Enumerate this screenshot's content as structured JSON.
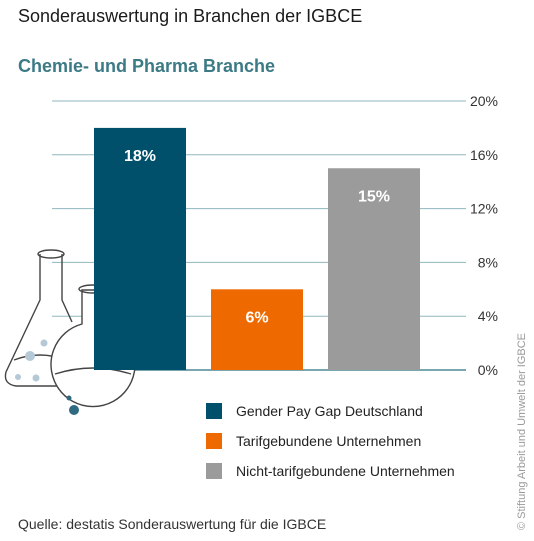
{
  "title": "Sonderauswertung in Branchen der IGBCE",
  "subtitle": "Chemie- und Pharma Branche",
  "source": "Quelle: destatis Sonderauswertung für die IGBCE",
  "copyright": "© Stiftung Arbeit und Umwelt der IGBCE",
  "illustration_icon": "lab-flasks-icon",
  "chart_data": {
    "type": "bar",
    "ylim": [
      0,
      20
    ],
    "y_ticks": [
      0,
      4,
      8,
      12,
      16,
      20
    ],
    "y_tick_labels": [
      "0%",
      "4%",
      "8%",
      "12%",
      "16%",
      "20%"
    ],
    "grid": true,
    "axis_position": "right",
    "legend_position": "bottom-right",
    "series": [
      {
        "name": "Gender Pay Gap Deutschland",
        "value": 18,
        "label": "18%",
        "color": "#00506b"
      },
      {
        "name": "Tarifgebundene Unternehmen",
        "value": 6,
        "label": "6%",
        "color": "#ee6a00"
      },
      {
        "name": "Nicht-tarifgebundene Unternehmen",
        "value": 15,
        "label": "15%",
        "color": "#9b9b9b"
      }
    ]
  }
}
